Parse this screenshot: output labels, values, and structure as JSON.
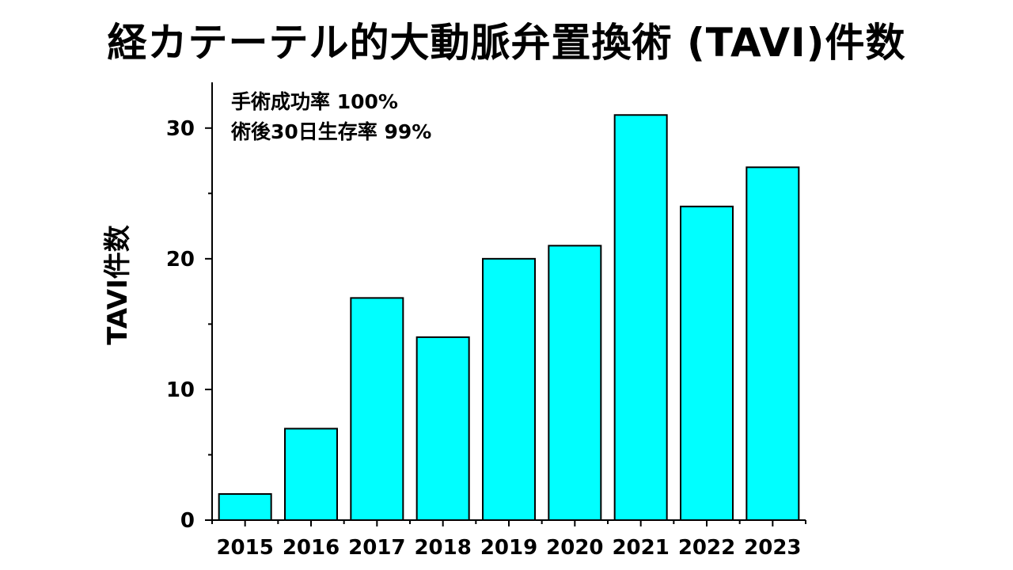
{
  "title": "経カテーテル的大動脈弁置換術 (TAVI)件数",
  "chart_data": {
    "type": "bar",
    "categories": [
      "2015",
      "2016",
      "2017",
      "2018",
      "2019",
      "2020",
      "2021",
      "2022",
      "2023"
    ],
    "values": [
      2,
      7,
      17,
      14,
      20,
      21,
      31,
      24,
      27
    ],
    "ylabel": "TAVI件数",
    "xlabel": "",
    "ylim": [
      0,
      33.5
    ],
    "yticks": [
      0,
      10,
      20,
      30
    ],
    "annotations": [
      "手術成功率 100%",
      "術後30日生存率 99%"
    ],
    "bar_color": "#00ffff",
    "bar_edge_color": "#000000",
    "grid": false,
    "legend": "none"
  }
}
